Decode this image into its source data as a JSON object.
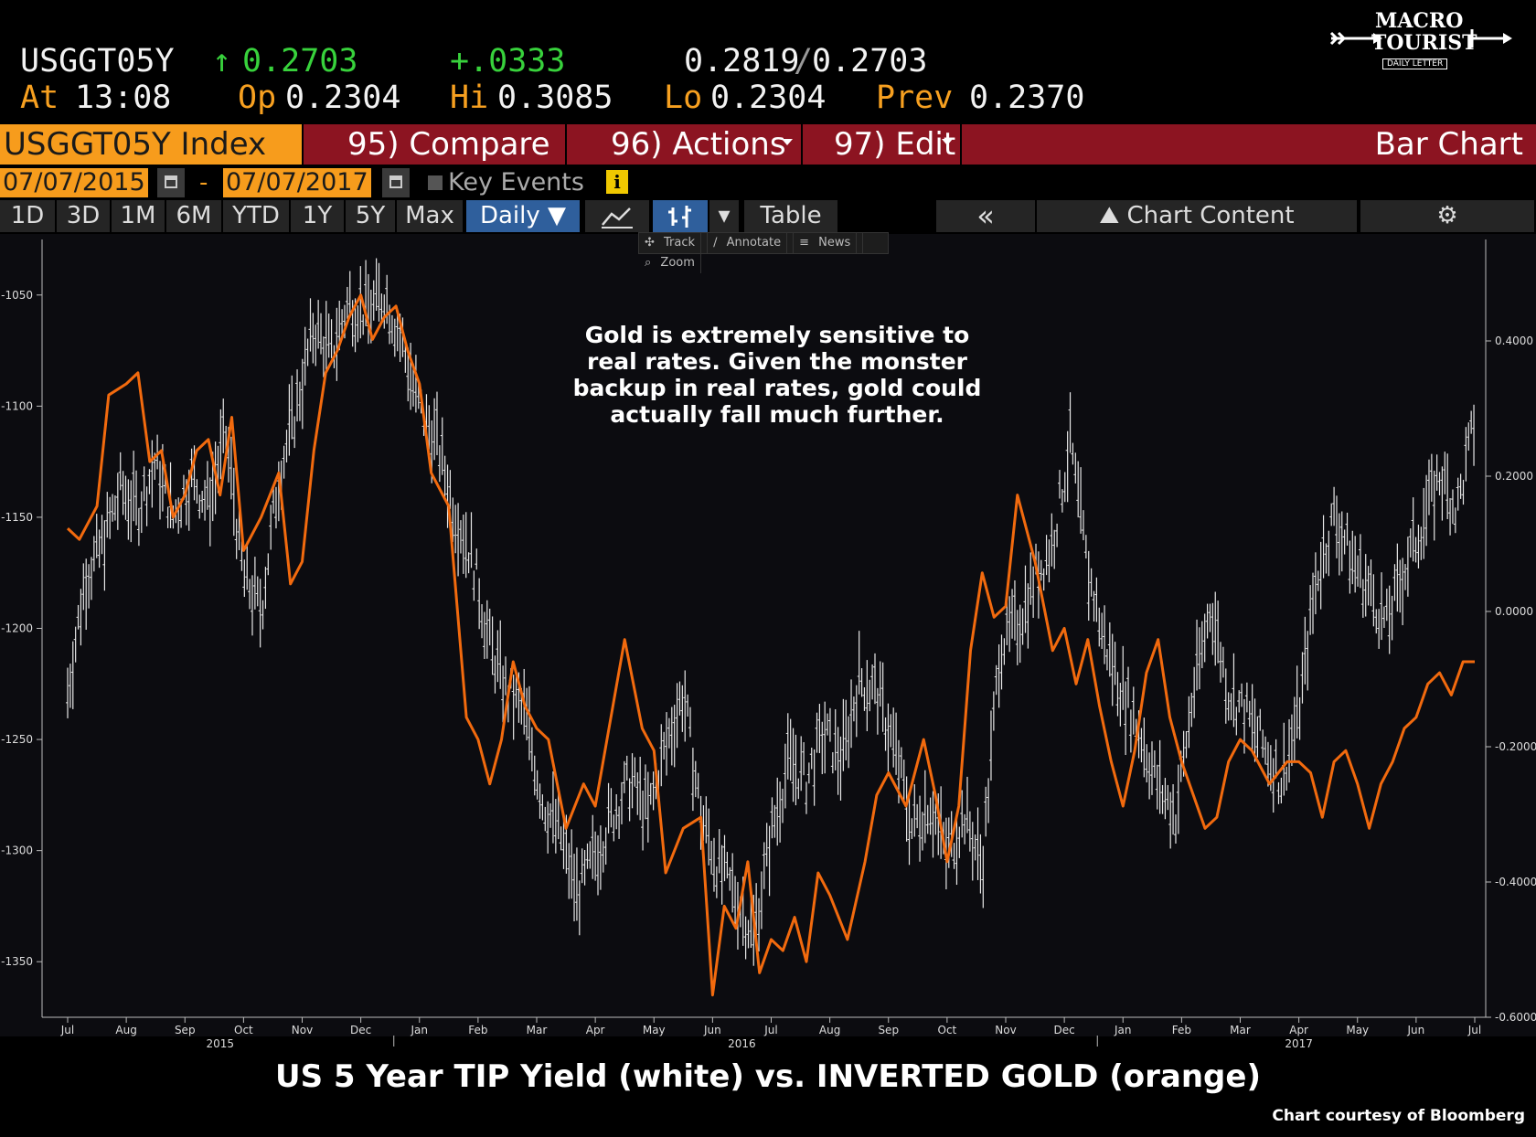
{
  "header": {
    "ticker": "USGGT05Y",
    "last_arrow": "↑",
    "last": "0.2703",
    "change": "+.0333",
    "bid": "0.2819",
    "ask": "0.2703",
    "at_label": "At",
    "time": "13:08",
    "open_label": "Op",
    "open": "0.2304",
    "high_label": "Hi",
    "high": "0.3085",
    "low_label": "Lo",
    "low": "0.2304",
    "prev_label": "Prev",
    "prev": "0.2370"
  },
  "logo": {
    "line1": "MACRO",
    "line2": "TOURIST",
    "line3": "DAILY LETTER"
  },
  "redbar": {
    "security": "USGGT05Y Index",
    "compare": "95) Compare",
    "actions": "96) Actions",
    "edit": "97) Edit",
    "view": "Bar Chart"
  },
  "dates": {
    "start": "07/07/2015",
    "dash": "-",
    "end": "07/07/2017",
    "key_events": "Key Events"
  },
  "toolbar": {
    "ranges": [
      "1D",
      "3D",
      "1M",
      "6M",
      "YTD",
      "1Y",
      "5Y",
      "Max"
    ],
    "period": "Daily ▼",
    "table": "Table",
    "collapse": "«",
    "chart_content": "Chart Content"
  },
  "subtoolbar": {
    "track": "Track",
    "annotate": "Annotate",
    "news": "News",
    "zoom": "Zoom"
  },
  "annotation": "Gold is extremely sensitive to real rates.  Given the monster backup in real rates, gold could actually fall much further.",
  "bottom_title": "US 5 Year TIP Yield (white) vs. INVERTED GOLD (orange)",
  "credit": "Chart courtesy of Bloomberg",
  "colors": {
    "gold_line": "#f26a0e",
    "tips_bars": "#e8e8e8",
    "background": "#0c0c10",
    "redbar": "#8c1421",
    "highlight": "#f79c1c"
  },
  "chart_data": {
    "type": "line",
    "title": "US 5 Year TIP Yield (white) vs. INVERTED GOLD (orange)",
    "x_tick_labels": [
      "Jul",
      "Aug",
      "Sep",
      "Oct",
      "Nov",
      "Dec",
      "Jan",
      "Feb",
      "Mar",
      "Apr",
      "May",
      "Jun",
      "Jul",
      "Aug",
      "Sep",
      "Oct",
      "Nov",
      "Dec",
      "Jan",
      "Feb",
      "Mar",
      "Apr",
      "May",
      "Jun",
      "Jul"
    ],
    "x_year_labels": [
      "2015",
      "2016",
      "2017"
    ],
    "left_axis": {
      "ticks": [
        -1050,
        -1100,
        -1150,
        -1200,
        -1250,
        -1300,
        -1350
      ],
      "ylim": [
        -1375,
        -1025
      ]
    },
    "right_axis": {
      "ticks": [
        0.4,
        0.2,
        0.0,
        -0.2,
        -0.4,
        -0.6
      ],
      "tick_labels": [
        "0.4000",
        "0.2000",
        "0.0000",
        "-0.2000",
        "-0.4000",
        "-0.6000"
      ],
      "ylim": [
        -0.6,
        0.55
      ]
    },
    "series": [
      {
        "name": "INVERTED GOLD (orange)",
        "style": "line",
        "axis": "left",
        "x": [
          0,
          0.2,
          0.5,
          0.7,
          1.0,
          1.2,
          1.4,
          1.6,
          1.8,
          2.0,
          2.2,
          2.4,
          2.6,
          2.8,
          3.0,
          3.3,
          3.6,
          3.8,
          4.0,
          4.2,
          4.4,
          4.6,
          4.8,
          5.0,
          5.2,
          5.4,
          5.6,
          5.8,
          6.0,
          6.2,
          6.5,
          6.8,
          7.0,
          7.2,
          7.4,
          7.6,
          7.8,
          8.0,
          8.2,
          8.5,
          8.8,
          9.0,
          9.2,
          9.5,
          9.8,
          10.0,
          10.2,
          10.5,
          10.8,
          11.0,
          11.2,
          11.4,
          11.6,
          11.8,
          12.0,
          12.2,
          12.4,
          12.6,
          12.8,
          13.0,
          13.3,
          13.6,
          13.8,
          14.0,
          14.3,
          14.6,
          14.8,
          15.0,
          15.2,
          15.4,
          15.6,
          15.8,
          16.0,
          16.2,
          16.5,
          16.8,
          17.0,
          17.2,
          17.4,
          17.6,
          17.8,
          18.0,
          18.2,
          18.4,
          18.6,
          18.8,
          19.0,
          19.2,
          19.4,
          19.6,
          19.8,
          20.0,
          20.2,
          20.5,
          20.8,
          21.0,
          21.2,
          21.4,
          21.6,
          21.8,
          22.0,
          22.2,
          22.4,
          22.6,
          22.8,
          23.0,
          23.2,
          23.4,
          23.6,
          23.8,
          24.0
        ],
        "values": [
          -1155,
          -1160,
          -1145,
          -1095,
          -1090,
          -1085,
          -1125,
          -1120,
          -1150,
          -1140,
          -1120,
          -1115,
          -1140,
          -1105,
          -1165,
          -1150,
          -1130,
          -1180,
          -1170,
          -1120,
          -1085,
          -1075,
          -1060,
          -1050,
          -1070,
          -1060,
          -1055,
          -1075,
          -1090,
          -1130,
          -1145,
          -1240,
          -1250,
          -1270,
          -1250,
          -1215,
          -1235,
          -1245,
          -1250,
          -1290,
          -1270,
          -1280,
          -1250,
          -1205,
          -1245,
          -1255,
          -1310,
          -1290,
          -1285,
          -1365,
          -1325,
          -1335,
          -1305,
          -1355,
          -1340,
          -1345,
          -1330,
          -1350,
          -1310,
          -1320,
          -1340,
          -1305,
          -1275,
          -1265,
          -1280,
          -1250,
          -1275,
          -1305,
          -1280,
          -1210,
          -1175,
          -1195,
          -1190,
          -1140,
          -1170,
          -1210,
          -1200,
          -1225,
          -1205,
          -1235,
          -1260,
          -1280,
          -1255,
          -1220,
          -1205,
          -1240,
          -1260,
          -1275,
          -1290,
          -1285,
          -1260,
          -1250,
          -1255,
          -1270,
          -1260,
          -1260,
          -1265,
          -1285,
          -1260,
          -1255,
          -1270,
          -1290,
          -1270,
          -1260,
          -1245,
          -1240,
          -1225,
          -1220,
          -1230,
          -1215,
          -1215
        ]
      },
      {
        "name": "US 5 Year TIP Yield (white)",
        "style": "bars",
        "axis": "right",
        "x": [
          0,
          0.3,
          0.6,
          0.9,
          1.2,
          1.5,
          1.8,
          2.1,
          2.4,
          2.7,
          3.0,
          3.3,
          3.6,
          3.9,
          4.2,
          4.5,
          4.8,
          5.1,
          5.4,
          5.7,
          6.0,
          6.3,
          6.6,
          6.9,
          7.2,
          7.5,
          7.8,
          8.1,
          8.4,
          8.7,
          9.0,
          9.3,
          9.6,
          9.9,
          10.2,
          10.5,
          10.8,
          11.1,
          11.4,
          11.7,
          12.0,
          12.3,
          12.6,
          12.9,
          13.2,
          13.5,
          13.8,
          14.1,
          14.4,
          14.7,
          15.0,
          15.3,
          15.6,
          15.9,
          16.2,
          16.5,
          16.8,
          17.1,
          17.4,
          17.7,
          18.0,
          18.3,
          18.6,
          18.9,
          19.2,
          19.5,
          19.8,
          20.1,
          20.4,
          20.7,
          21.0,
          21.3,
          21.6,
          21.9,
          22.2,
          22.5,
          22.8,
          23.1,
          23.4,
          23.7,
          24.0
        ],
        "values": [
          -0.12,
          0.05,
          0.1,
          0.18,
          0.15,
          0.22,
          0.14,
          0.2,
          0.16,
          0.26,
          0.05,
          0.0,
          0.2,
          0.3,
          0.42,
          0.38,
          0.46,
          0.44,
          0.47,
          0.4,
          0.3,
          0.25,
          0.15,
          0.08,
          -0.05,
          -0.12,
          -0.15,
          -0.28,
          -0.33,
          -0.42,
          -0.36,
          -0.3,
          -0.25,
          -0.3,
          -0.2,
          -0.12,
          -0.3,
          -0.38,
          -0.42,
          -0.48,
          -0.33,
          -0.22,
          -0.25,
          -0.18,
          -0.22,
          -0.1,
          -0.12,
          -0.2,
          -0.32,
          -0.28,
          -0.36,
          -0.3,
          -0.38,
          -0.05,
          -0.02,
          0.05,
          0.1,
          0.25,
          0.06,
          -0.05,
          -0.12,
          -0.18,
          -0.26,
          -0.3,
          -0.12,
          0.01,
          -0.12,
          -0.15,
          -0.2,
          -0.25,
          -0.15,
          0.05,
          0.14,
          0.08,
          0.03,
          -0.02,
          0.06,
          0.13,
          0.2,
          0.15,
          0.28
        ]
      }
    ]
  }
}
